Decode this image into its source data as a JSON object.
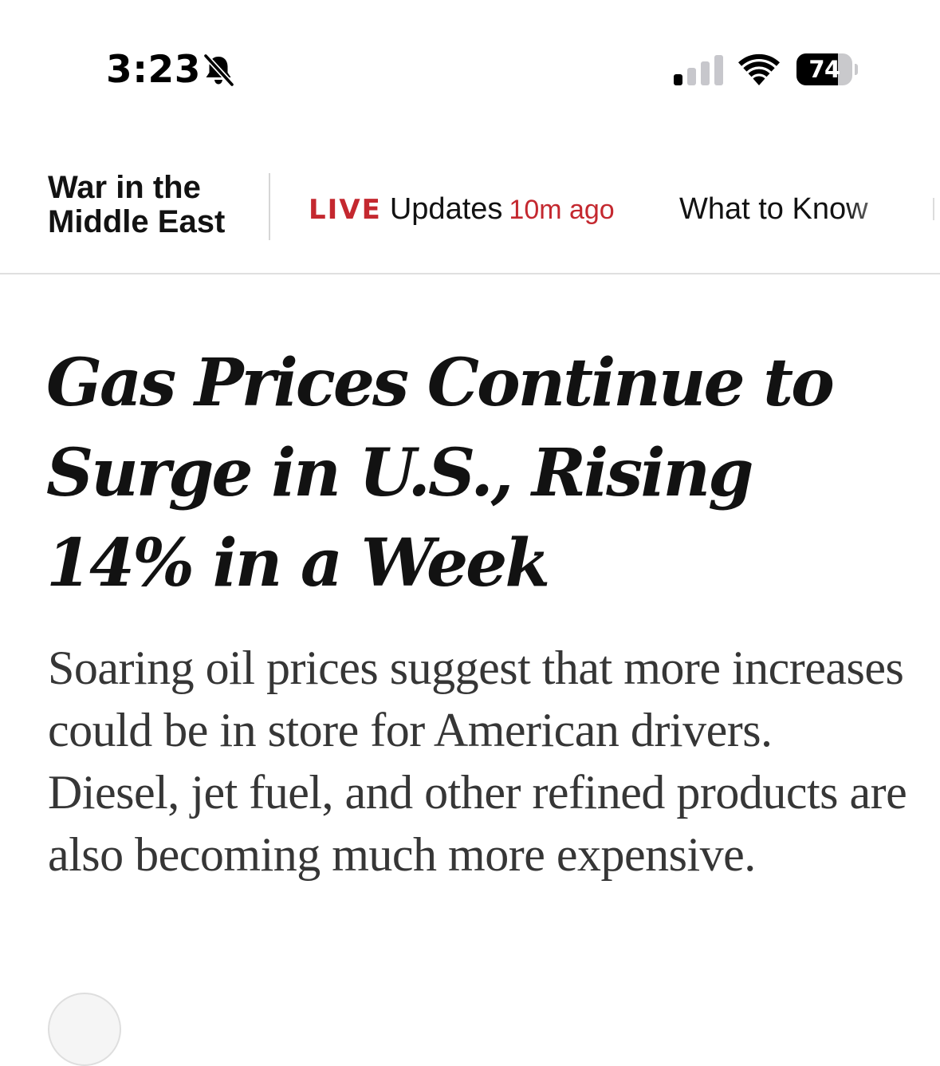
{
  "status_bar": {
    "time": "3:23",
    "mute_icon": "bell-slash-icon",
    "signal_icon": "cellular-signal-icon",
    "signal_bars_active": 1,
    "signal_bars_total": 4,
    "wifi_icon": "wifi-icon",
    "battery_icon": "battery-icon",
    "battery_level": "74",
    "battery_fraction": 0.74
  },
  "topic_nav": {
    "title": "War in the Middle East",
    "live_tag": "LIVE",
    "updates_label": "Updates",
    "updated_time": "10m ago",
    "what_to_know": "What to Know",
    "accent_color": "#c4282f"
  },
  "article": {
    "headline": "Gas Prices Continue to Surge in U.S., Rising 14% in a Week",
    "summary": "Soaring oil prices suggest that more increases could be in store for American drivers. Diesel, jet fuel, and other refined products are also becoming much more expensive."
  }
}
